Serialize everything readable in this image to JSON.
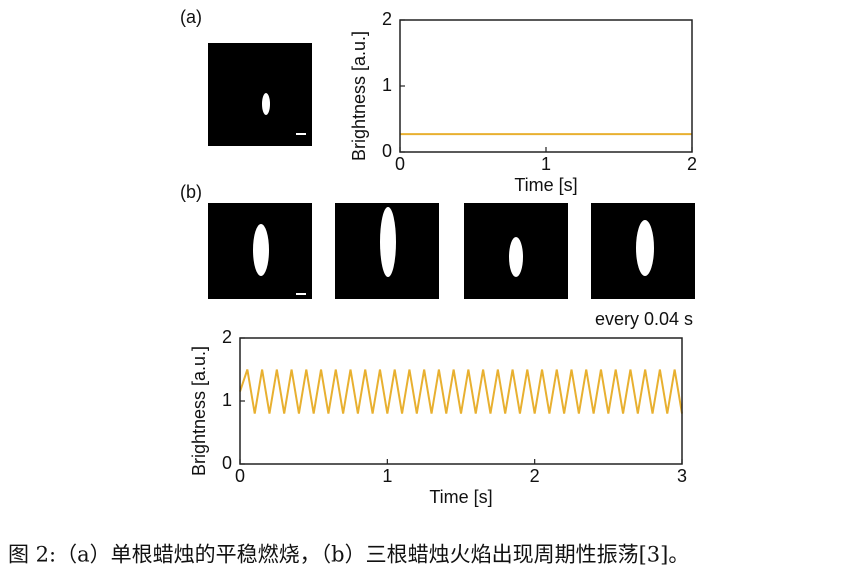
{
  "chart_data": [
    {
      "type": "line",
      "label": "(a)",
      "xlabel": "Time [s]",
      "ylabel": "Brightness [a.u.]",
      "x": [
        0,
        2
      ],
      "values": [
        0.27,
        0.27
      ],
      "color": "#e8b030",
      "xlim": [
        0,
        2
      ],
      "ylim": [
        0,
        2
      ],
      "xticks": [
        0,
        1,
        2
      ],
      "yticks": [
        0,
        1,
        2
      ]
    },
    {
      "type": "line",
      "label": "(b)",
      "annotation": "every 0.04 s",
      "xlabel": "Time [s]",
      "ylabel": "Brightness [a.u.]",
      "x": [
        0,
        0.05,
        0.1,
        0.15,
        0.2,
        0.25,
        0.3,
        0.35,
        0.4,
        0.45,
        0.5,
        0.55,
        0.6,
        0.65,
        0.7,
        0.75,
        0.8,
        0.85,
        0.9,
        0.95,
        1,
        1.05,
        1.1,
        1.15,
        1.2,
        1.25,
        1.3,
        1.35,
        1.4,
        1.45,
        1.5,
        1.55,
        1.6,
        1.65,
        1.7,
        1.75,
        1.8,
        1.85,
        1.9,
        1.95,
        2,
        2.05,
        2.1,
        2.15,
        2.2,
        2.25,
        2.3,
        2.35,
        2.4,
        2.45,
        2.5,
        2.55,
        2.6,
        2.65,
        2.7,
        2.75,
        2.8,
        2.85,
        2.9,
        2.95,
        3
      ],
      "values": [
        1.15,
        1.5,
        0.8,
        1.5,
        0.8,
        1.5,
        0.8,
        1.5,
        0.8,
        1.5,
        0.8,
        1.5,
        0.8,
        1.5,
        0.8,
        1.5,
        0.8,
        1.5,
        0.8,
        1.5,
        0.8,
        1.5,
        0.8,
        1.5,
        0.8,
        1.5,
        0.8,
        1.5,
        0.8,
        1.5,
        0.8,
        1.5,
        0.8,
        1.5,
        0.8,
        1.5,
        0.8,
        1.5,
        0.8,
        1.5,
        0.8,
        1.5,
        0.8,
        1.5,
        0.8,
        1.5,
        0.8,
        1.5,
        0.8,
        1.5,
        0.8,
        1.5,
        0.8,
        1.5,
        0.8,
        1.5,
        0.8,
        1.5,
        0.8,
        1.5,
        0.8
      ],
      "color": "#e8b030",
      "xlim": [
        0,
        3
      ],
      "ylim": [
        0,
        2
      ],
      "xticks": [
        0,
        1,
        2,
        3
      ],
      "yticks": [
        0,
        1,
        2
      ]
    }
  ],
  "caption": "图 2:（a）单根蜡烛的平稳燃烧，（b）三根蜡烛火焰出现周期性振荡[3]。"
}
